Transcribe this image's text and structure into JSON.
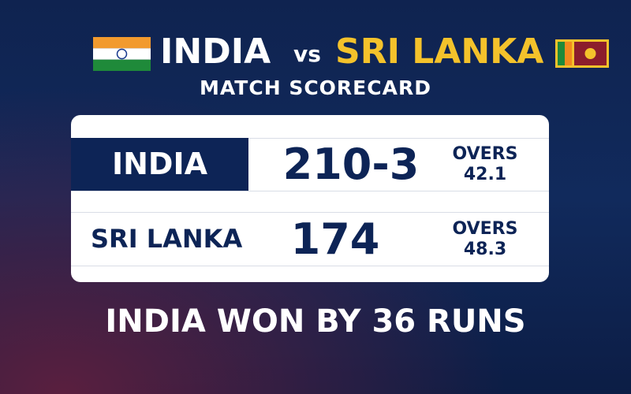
{
  "header": {
    "team1": "INDIA",
    "vs": "vs",
    "team2": "SRI LANKA",
    "subtitle": "MATCH SCORECARD"
  },
  "rows": [
    {
      "team": "INDIA",
      "score": "210-3",
      "overs_label": "OVERS",
      "overs": 42.1
    },
    {
      "team": "SRI LANKA",
      "score": 174,
      "overs_label": "OVERS",
      "overs": 48.3
    }
  ],
  "result": "INDIA WON BY 36 RUNS"
}
